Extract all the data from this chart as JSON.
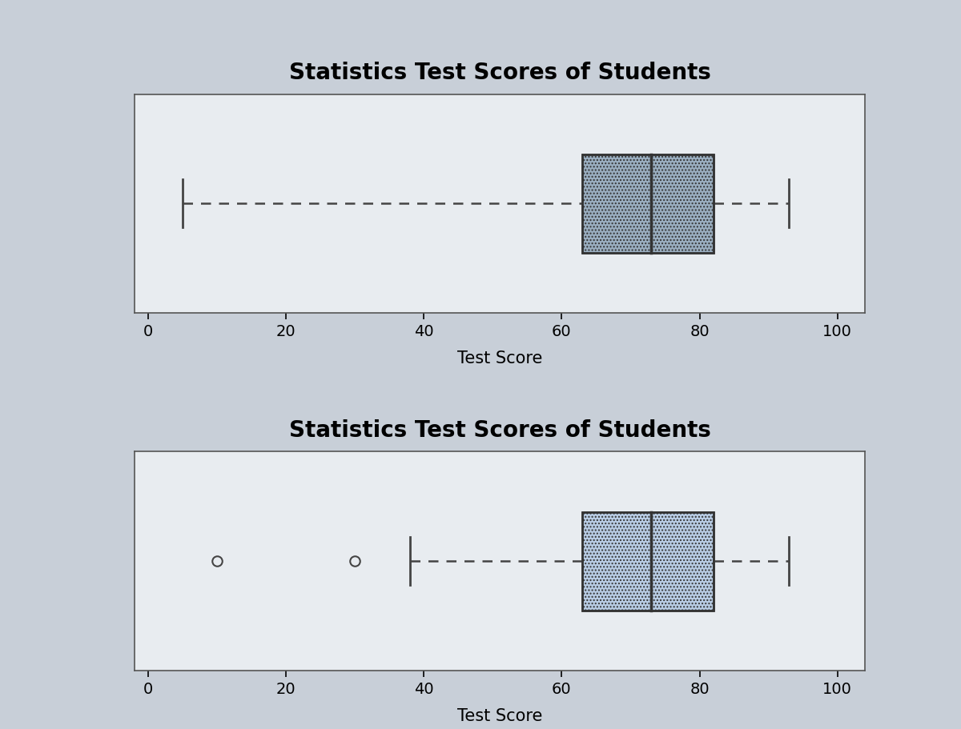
{
  "title": "Statistics Test Scores of Students",
  "xlabel": "Test Score",
  "outer_bg": "#c8cfd8",
  "plot_bg": "#e8ecf0",
  "xlim": [
    -2,
    104
  ],
  "xticks": [
    0,
    20,
    40,
    60,
    80,
    100
  ],
  "box1": {
    "min": 5,
    "q1": 63,
    "median": 73,
    "q3": 82,
    "max": 93,
    "box_color": "#9aaec0",
    "edge_color": "#333333",
    "whisker_color": "#444444"
  },
  "box2": {
    "min": 38,
    "q1": 63,
    "median": 73,
    "q3": 82,
    "max": 93,
    "outliers": [
      10,
      30
    ],
    "box_color": "#b8cce4",
    "edge_color": "#333333",
    "whisker_color": "#444444"
  },
  "title_fontsize": 20,
  "label_fontsize": 15,
  "tick_fontsize": 14,
  "fig_width": 12.0,
  "fig_height": 9.12
}
